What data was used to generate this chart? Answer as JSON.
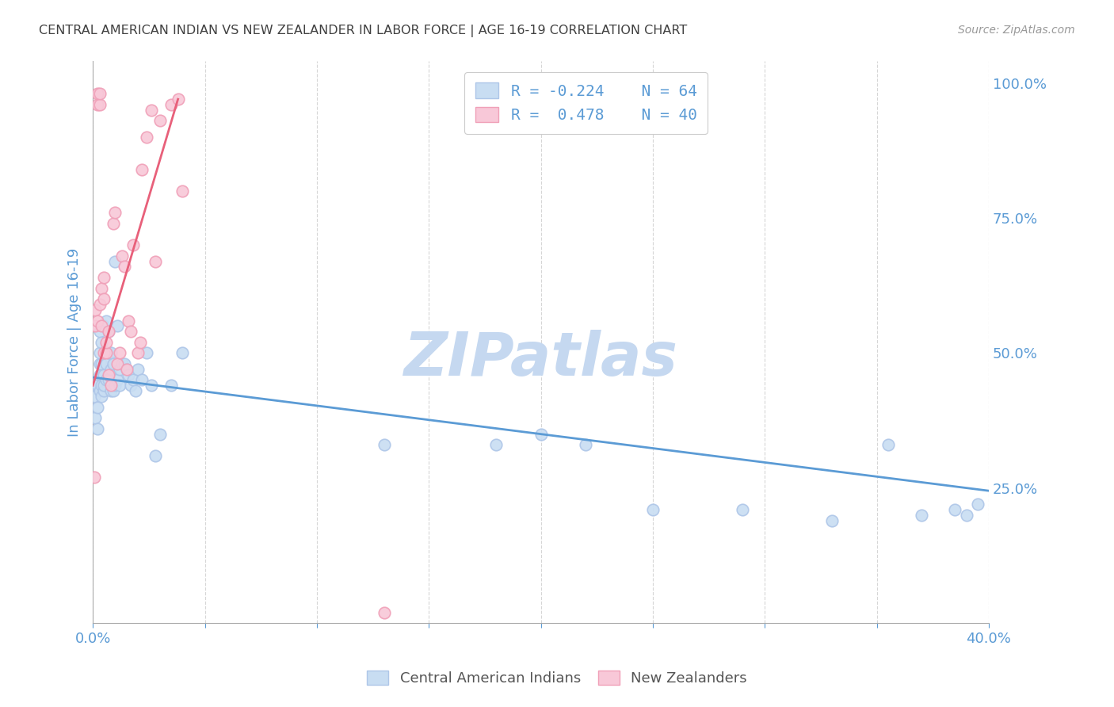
{
  "title": "CENTRAL AMERICAN INDIAN VS NEW ZEALANDER IN LABOR FORCE | AGE 16-19 CORRELATION CHART",
  "source": "Source: ZipAtlas.com",
  "ylabel": "In Labor Force | Age 16-19",
  "watermark": "ZIPatlas",
  "legend_r1": "-0.224",
  "legend_n1": "64",
  "legend_r2": "0.478",
  "legend_n2": "40",
  "blue_color": "#aec6e8",
  "blue_face_color": "#c8ddf2",
  "pink_color": "#f0a0b8",
  "pink_face_color": "#f8c8d8",
  "blue_line_color": "#5b9bd5",
  "pink_line_color": "#e8607a",
  "title_color": "#404040",
  "axis_label_color": "#5b9bd5",
  "legend_text_color": "#5b9bd5",
  "watermark_color": "#c5d8f0",
  "source_color": "#999999",
  "bottom_legend_color": "#555555",
  "xlim": [
    0.0,
    0.4
  ],
  "ylim": [
    0.0,
    1.04
  ],
  "blue_scatter_x": [
    0.0005,
    0.001,
    0.001,
    0.002,
    0.002,
    0.002,
    0.003,
    0.003,
    0.003,
    0.003,
    0.003,
    0.004,
    0.004,
    0.004,
    0.004,
    0.004,
    0.005,
    0.005,
    0.005,
    0.005,
    0.006,
    0.006,
    0.006,
    0.007,
    0.007,
    0.007,
    0.008,
    0.008,
    0.008,
    0.009,
    0.009,
    0.01,
    0.01,
    0.011,
    0.011,
    0.012,
    0.012,
    0.013,
    0.014,
    0.015,
    0.016,
    0.017,
    0.018,
    0.019,
    0.02,
    0.022,
    0.024,
    0.026,
    0.028,
    0.03,
    0.035,
    0.04,
    0.13,
    0.18,
    0.2,
    0.22,
    0.25,
    0.29,
    0.33,
    0.355,
    0.37,
    0.385,
    0.39,
    0.395
  ],
  "blue_scatter_y": [
    0.42,
    0.38,
    0.44,
    0.36,
    0.4,
    0.44,
    0.43,
    0.46,
    0.48,
    0.5,
    0.54,
    0.42,
    0.44,
    0.46,
    0.48,
    0.52,
    0.43,
    0.44,
    0.46,
    0.55,
    0.45,
    0.48,
    0.56,
    0.45,
    0.5,
    0.54,
    0.43,
    0.47,
    0.5,
    0.43,
    0.48,
    0.44,
    0.67,
    0.45,
    0.55,
    0.44,
    0.47,
    0.48,
    0.48,
    0.47,
    0.46,
    0.44,
    0.45,
    0.43,
    0.47,
    0.45,
    0.5,
    0.44,
    0.31,
    0.35,
    0.44,
    0.5,
    0.33,
    0.33,
    0.35,
    0.33,
    0.21,
    0.21,
    0.19,
    0.33,
    0.2,
    0.21,
    0.2,
    0.22
  ],
  "pink_scatter_x": [
    0.0005,
    0.001,
    0.001,
    0.002,
    0.002,
    0.002,
    0.003,
    0.003,
    0.003,
    0.004,
    0.004,
    0.005,
    0.005,
    0.005,
    0.006,
    0.006,
    0.007,
    0.007,
    0.008,
    0.009,
    0.01,
    0.011,
    0.012,
    0.013,
    0.014,
    0.015,
    0.016,
    0.017,
    0.018,
    0.02,
    0.021,
    0.022,
    0.024,
    0.026,
    0.028,
    0.03,
    0.035,
    0.038,
    0.04,
    0.13
  ],
  "pink_scatter_y": [
    0.27,
    0.55,
    0.58,
    0.56,
    0.96,
    0.98,
    0.59,
    0.96,
    0.98,
    0.55,
    0.62,
    0.5,
    0.6,
    0.64,
    0.5,
    0.52,
    0.46,
    0.54,
    0.44,
    0.74,
    0.76,
    0.48,
    0.5,
    0.68,
    0.66,
    0.47,
    0.56,
    0.54,
    0.7,
    0.5,
    0.52,
    0.84,
    0.9,
    0.95,
    0.67,
    0.93,
    0.96,
    0.97,
    0.8,
    0.02
  ],
  "blue_trend_x": [
    0.0,
    0.4
  ],
  "blue_trend_y": [
    0.455,
    0.245
  ],
  "pink_trend_x": [
    0.0,
    0.038
  ],
  "pink_trend_y": [
    0.44,
    0.97
  ],
  "xticks": [
    0.0,
    0.05,
    0.1,
    0.15,
    0.2,
    0.25,
    0.3,
    0.35,
    0.4
  ],
  "yticks_right": [
    0.25,
    0.5,
    0.75,
    1.0
  ],
  "ytick_labels_right": [
    "25.0%",
    "50.0%",
    "75.0%",
    "100.0%"
  ]
}
